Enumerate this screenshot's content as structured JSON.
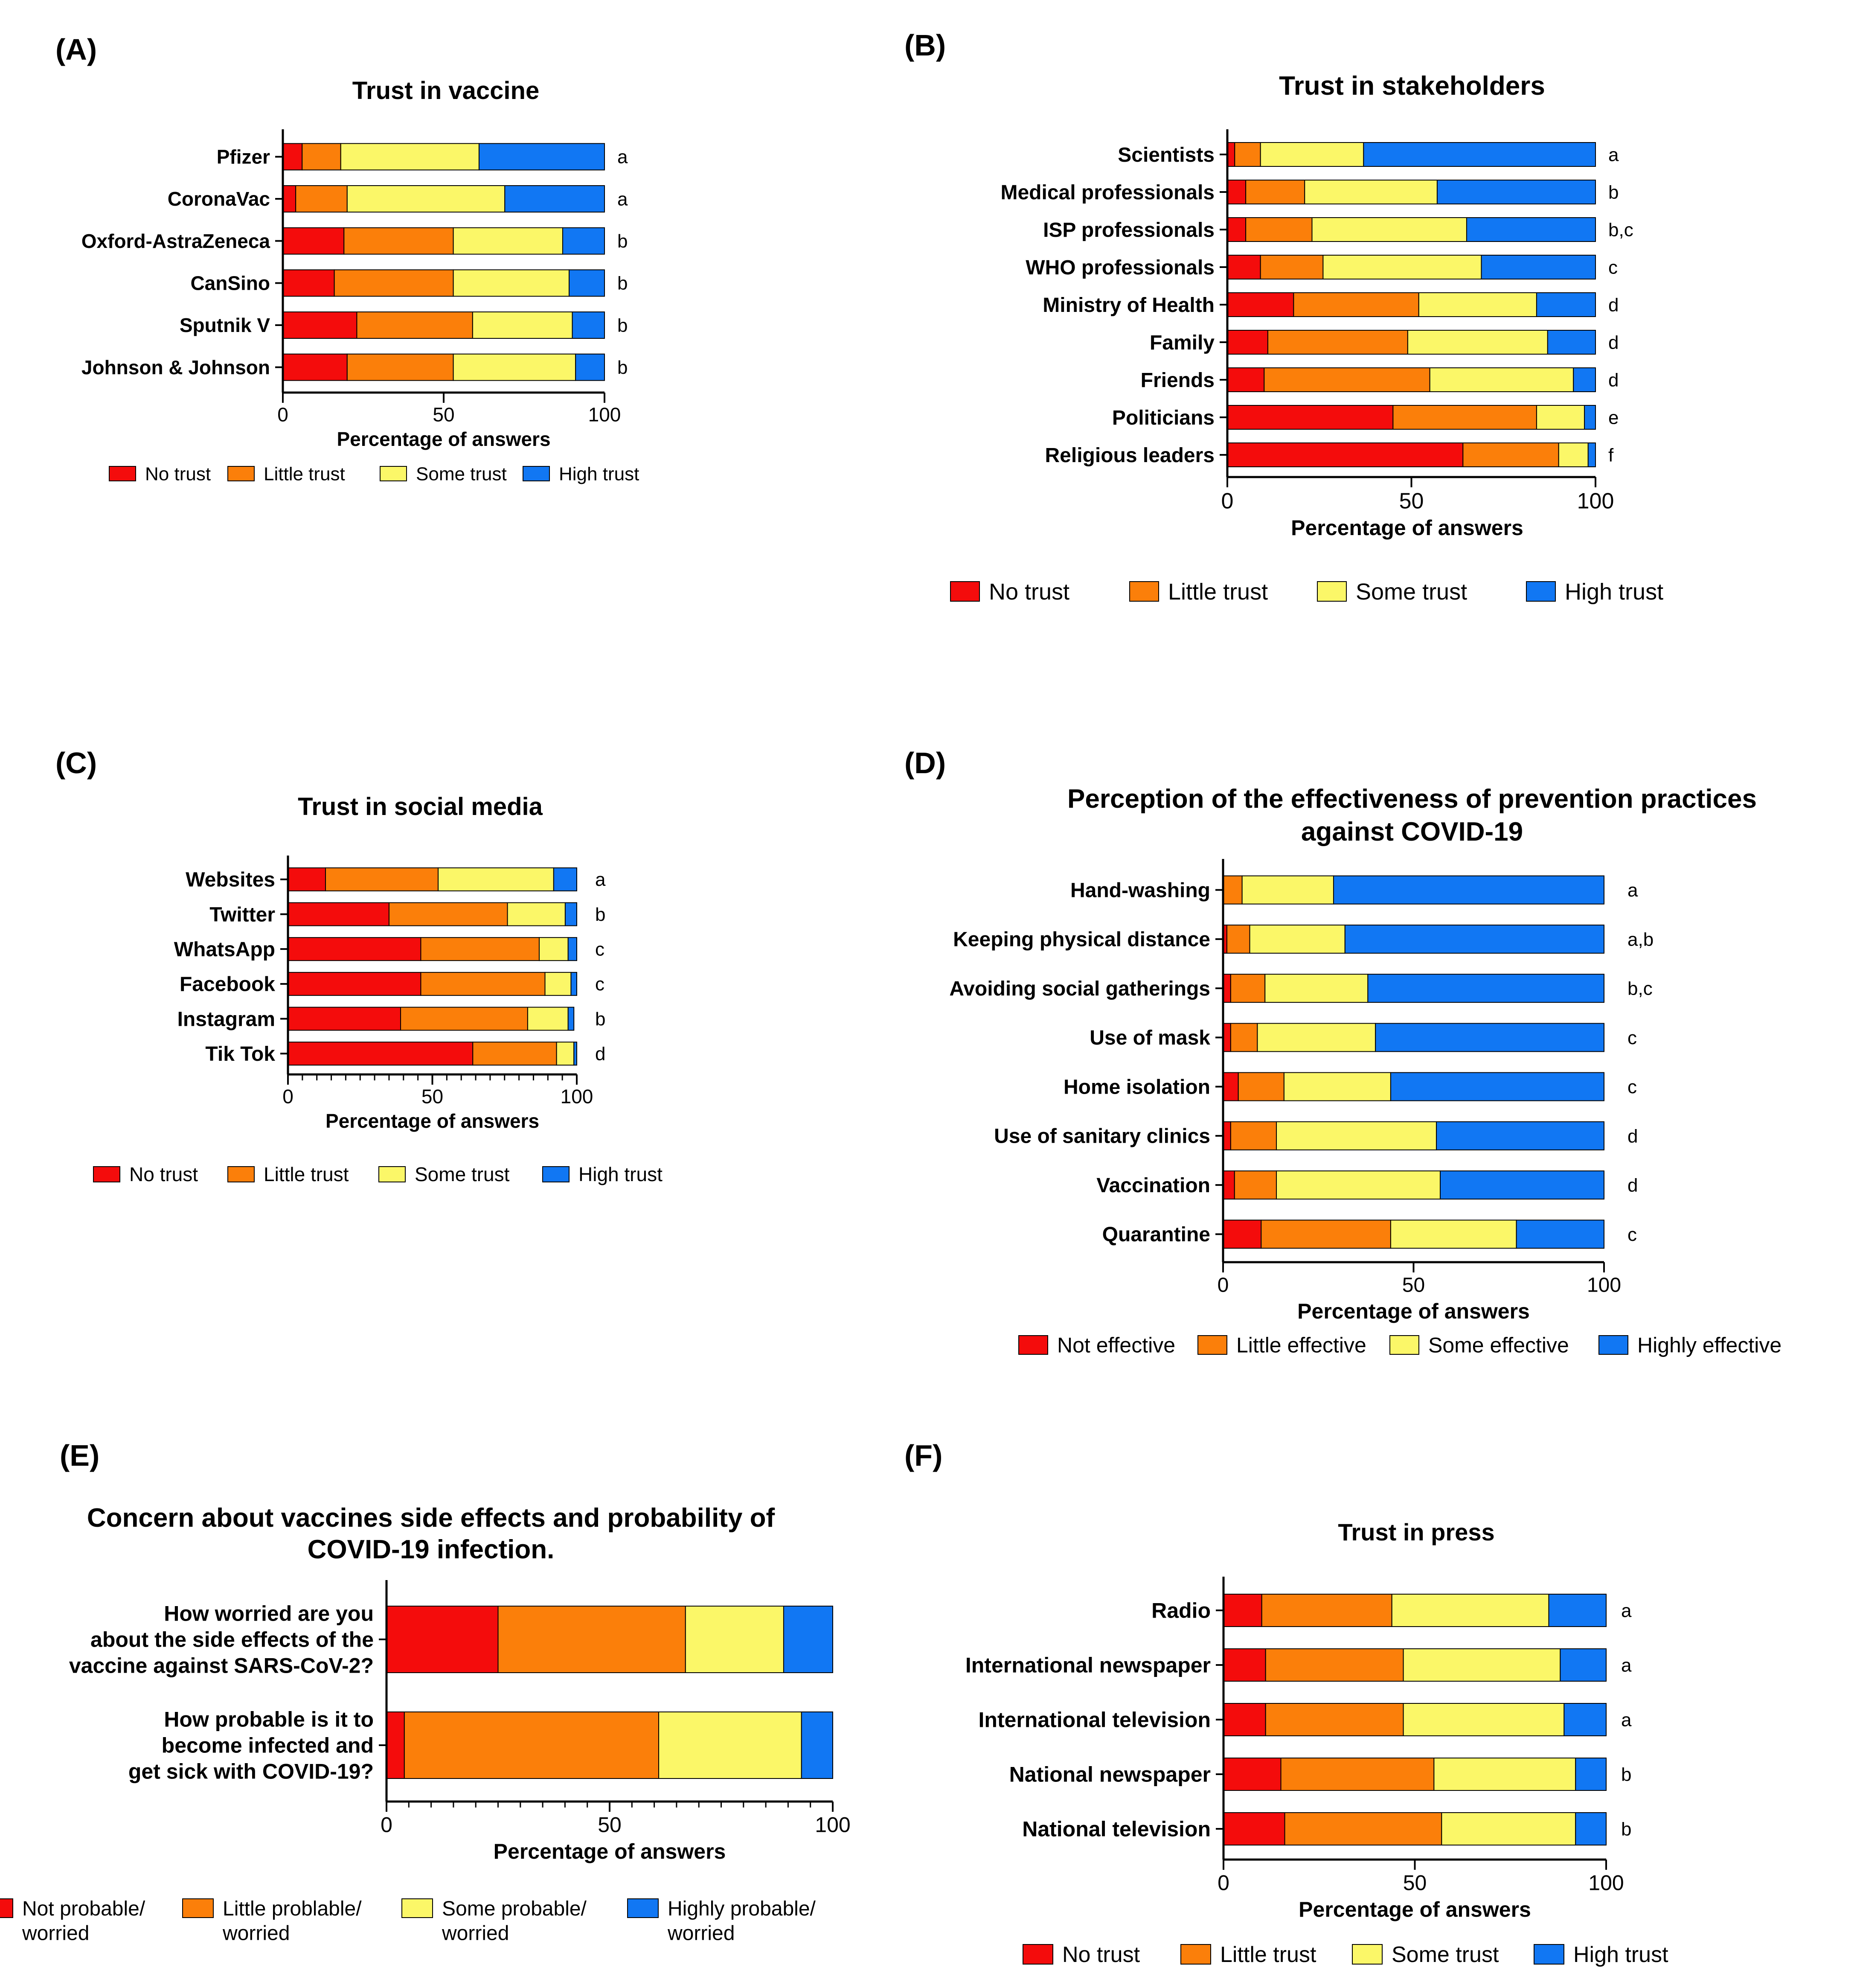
{
  "colors": {
    "c1": "#f40c0c",
    "c2": "#fb7f0a",
    "c3": "#fbf768",
    "c4": "#1177f3"
  },
  "chart_data": [
    {
      "panel": "(A)",
      "type": "bar",
      "orientation": "horizontal",
      "stacked": true,
      "title": [
        "Trust in vaccine"
      ],
      "categories": [
        "Pfizer",
        "CoronaVac",
        "Oxford-AstraZeneca",
        "CanSino",
        "Sputnik V",
        "Johnson & Johnson"
      ],
      "series": [
        {
          "name": "No trust",
          "color": "#f40c0c",
          "values": [
            6,
            4,
            19,
            16,
            23,
            20
          ]
        },
        {
          "name": "Little trust",
          "color": "#fb7f0a",
          "values": [
            12,
            16,
            34,
            37,
            36,
            33
          ]
        },
        {
          "name": "Some trust",
          "color": "#fbf768",
          "values": [
            43,
            49,
            34,
            36,
            31,
            38
          ]
        },
        {
          "name": "High trust",
          "color": "#1177f3",
          "values": [
            39,
            31,
            13,
            11,
            10,
            9
          ]
        }
      ],
      "letters": [
        "a",
        "a",
        "b",
        "b",
        "b",
        "b"
      ],
      "xlabel": "Percentage of answers",
      "xticks": [
        0,
        50,
        100
      ],
      "xlim": [
        0,
        100
      ],
      "legend": [
        "No trust",
        "Little trust",
        "Some trust",
        "High trust"
      ]
    },
    {
      "panel": "(B)",
      "type": "bar",
      "orientation": "horizontal",
      "stacked": true,
      "title": [
        "Trust in stakeholders"
      ],
      "categories": [
        "Scientists",
        "Medical professionals",
        "ISP professionals",
        "WHO professionals",
        "Ministry of Health",
        "Family",
        "Friends",
        "Politicians",
        "Religious leaders"
      ],
      "series": [
        {
          "name": "No trust",
          "color": "#f40c0c",
          "values": [
            2,
            5,
            5,
            9,
            18,
            11,
            10,
            45,
            64
          ]
        },
        {
          "name": "Little trust",
          "color": "#fb7f0a",
          "values": [
            7,
            16,
            18,
            17,
            34,
            38,
            45,
            39,
            26
          ]
        },
        {
          "name": "Some trust",
          "color": "#fbf768",
          "values": [
            28,
            36,
            42,
            43,
            32,
            38,
            39,
            13,
            8
          ]
        },
        {
          "name": "High trust",
          "color": "#1177f3",
          "values": [
            63,
            43,
            35,
            31,
            16,
            13,
            6,
            3,
            2
          ]
        }
      ],
      "letters": [
        "a",
        "b",
        "b,c",
        "c",
        "d",
        "d",
        "d",
        "e",
        "f"
      ],
      "xlabel": "Percentage of answers",
      "xticks": [
        0,
        50,
        100
      ],
      "xlim": [
        0,
        100
      ],
      "legend": [
        "No trust",
        "Little trust",
        "Some trust",
        "High trust"
      ]
    },
    {
      "panel": "(C)",
      "type": "bar",
      "orientation": "horizontal",
      "stacked": true,
      "title": [
        "Trust in social media"
      ],
      "categories": [
        "Websites",
        "Twitter",
        "WhatsApp",
        "Facebook",
        "Instagram",
        "Tik Tok"
      ],
      "series": [
        {
          "name": "No trust",
          "color": "#f40c0c",
          "values": [
            13,
            35,
            46,
            46,
            39,
            64
          ]
        },
        {
          "name": "Little trust",
          "color": "#fb7f0a",
          "values": [
            39,
            41,
            41,
            43,
            44,
            29
          ]
        },
        {
          "name": "Some trust",
          "color": "#fbf768",
          "values": [
            40,
            20,
            10,
            9,
            14,
            6
          ]
        },
        {
          "name": "High trust",
          "color": "#1177f3",
          "values": [
            8,
            4,
            3,
            2,
            2,
            1
          ]
        }
      ],
      "letters": [
        "a",
        "b",
        "c",
        "c",
        "b",
        "d"
      ],
      "xlabel": "Percentage of answers",
      "xticks": [
        0,
        50,
        100
      ],
      "xlim": [
        0,
        100
      ],
      "legend": [
        "No trust",
        "Little trust",
        "Some trust",
        "High trust"
      ]
    },
    {
      "panel": "(D)",
      "type": "bar",
      "orientation": "horizontal",
      "stacked": true,
      "title": [
        "Perception of the effectiveness of prevention practices",
        "against COVID-19"
      ],
      "categories": [
        "Hand-washing",
        "Keeping physical distance",
        "Avoiding social gatherings",
        "Use of mask",
        "Home isolation",
        "Use of sanitary clinics",
        "Vaccination",
        "Quarantine"
      ],
      "series": [
        {
          "name": "Not effective",
          "color": "#f40c0c",
          "values": [
            0,
            1,
            2,
            2,
            4,
            2,
            3,
            10
          ]
        },
        {
          "name": "Little effective",
          "color": "#fb7f0a",
          "values": [
            5,
            6,
            9,
            7,
            12,
            12,
            11,
            34
          ]
        },
        {
          "name": "Some effective",
          "color": "#fbf768",
          "values": [
            24,
            25,
            27,
            31,
            28,
            42,
            43,
            33
          ]
        },
        {
          "name": "Highly effective",
          "color": "#1177f3",
          "values": [
            71,
            68,
            62,
            60,
            56,
            44,
            43,
            23
          ]
        }
      ],
      "letters": [
        "a",
        "a,b",
        "b,c",
        "c",
        "c",
        "d",
        "d",
        "c"
      ],
      "xlabel": "Percentage of answers",
      "xticks": [
        0,
        50,
        100
      ],
      "xlim": [
        0,
        100
      ],
      "legend": [
        "Not effective",
        "Little effective",
        "Some effective",
        "Highly effective"
      ]
    },
    {
      "panel": "(E)",
      "type": "bar",
      "orientation": "horizontal",
      "stacked": true,
      "title": [
        "Concern about vaccines side effects and probability of",
        "COVID-19 infection."
      ],
      "categories": [
        [
          "How worried are you",
          "about the side effects of the",
          "vaccine against SARS-CoV-2?"
        ],
        [
          "How probable is it to",
          "become infected and",
          "get sick with COVID-19?"
        ]
      ],
      "series": [
        {
          "name": "Not probable/ worried",
          "color": "#f40c0c",
          "values": [
            25,
            4
          ]
        },
        {
          "name": "Little problable/ worried",
          "color": "#fb7f0a",
          "values": [
            42,
            57
          ]
        },
        {
          "name": "Some probable/ worried",
          "color": "#fbf768",
          "values": [
            22,
            32
          ]
        },
        {
          "name": "Highly probable/ worried",
          "color": "#1177f3",
          "values": [
            11,
            7
          ]
        }
      ],
      "letters": [
        "",
        ""
      ],
      "xlabel": "Percentage of answers",
      "xticks": [
        0,
        50,
        100
      ],
      "xlim": [
        0,
        100
      ],
      "legend": [
        [
          "Not probable/",
          "worried"
        ],
        [
          "Little problable/",
          "worried"
        ],
        [
          "Some probable/",
          "worried"
        ],
        [
          "Highly probable/",
          "worried"
        ]
      ]
    },
    {
      "panel": "(F)",
      "type": "bar",
      "orientation": "horizontal",
      "stacked": true,
      "title": [
        "Trust in press"
      ],
      "categories": [
        "Radio",
        "International newspaper",
        "International television",
        "National newspaper",
        "National television"
      ],
      "series": [
        {
          "name": "No trust",
          "color": "#f40c0c",
          "values": [
            10,
            11,
            11,
            15,
            16
          ]
        },
        {
          "name": "Little trust",
          "color": "#fb7f0a",
          "values": [
            34,
            36,
            36,
            40,
            41
          ]
        },
        {
          "name": "Some trust",
          "color": "#fbf768",
          "values": [
            41,
            41,
            42,
            37,
            35
          ]
        },
        {
          "name": "High trust",
          "color": "#1177f3",
          "values": [
            15,
            12,
            11,
            8,
            8
          ]
        }
      ],
      "letters": [
        "a",
        "a",
        "a",
        "b",
        "b"
      ],
      "xlabel": "Percentage of answers",
      "xticks": [
        0,
        50,
        100
      ],
      "xlim": [
        0,
        100
      ],
      "legend": [
        "No trust",
        "Little trust",
        "Some trust",
        "High trust"
      ]
    }
  ]
}
